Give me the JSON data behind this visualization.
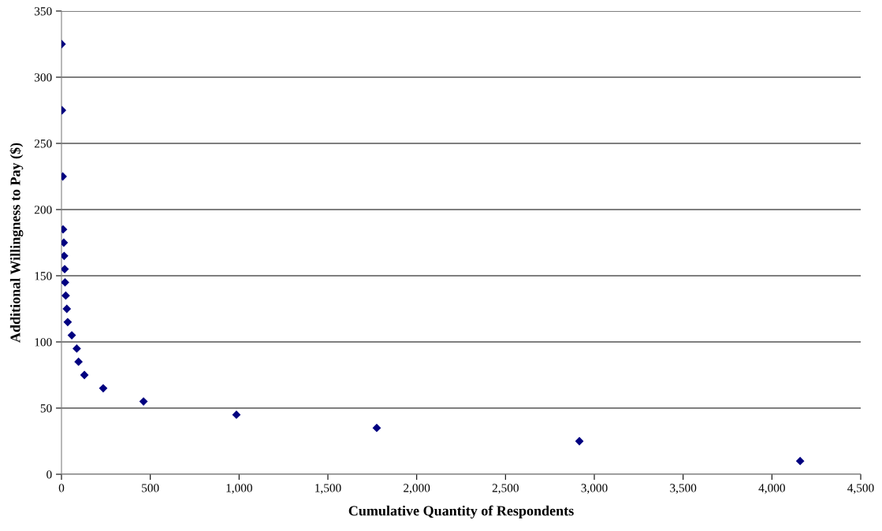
{
  "chart_data": {
    "type": "scatter",
    "xlabel": "Cumulative Quantity of Respondents",
    "ylabel": "Additional Willingness to Pay ($)",
    "x": [
      1,
      3,
      7,
      9,
      13,
      15,
      18,
      20,
      24,
      30,
      35,
      58,
      86,
      96,
      129,
      235,
      462,
      985,
      1775,
      2916,
      4159
    ],
    "series": [
      {
        "color": "#000080",
        "values": [
          325,
          275,
          225,
          185,
          175,
          165,
          155,
          145,
          135,
          125,
          115,
          105,
          95,
          85,
          75,
          65,
          55,
          45,
          35,
          25,
          10
        ]
      }
    ],
    "xlim": [
      0,
      4500
    ],
    "xticks": [
      {
        "value": 0,
        "label": "0"
      },
      {
        "value": 500,
        "label": "500"
      },
      {
        "value": 1000,
        "label": "1,000"
      },
      {
        "value": 1500,
        "label": "1,500"
      },
      {
        "value": 2000,
        "label": "2,000"
      },
      {
        "value": 2500,
        "label": "2,500"
      },
      {
        "value": 3000,
        "label": "3,000"
      },
      {
        "value": 3500,
        "label": "3,500"
      },
      {
        "value": 4000,
        "label": "4,000"
      },
      {
        "value": 4500,
        "label": "4,500"
      }
    ],
    "ylim": [
      0,
      350
    ],
    "yticks": [
      0,
      50,
      100,
      150,
      200,
      250,
      300,
      350
    ],
    "grid": "y",
    "marker": "diamond",
    "legend": false
  }
}
